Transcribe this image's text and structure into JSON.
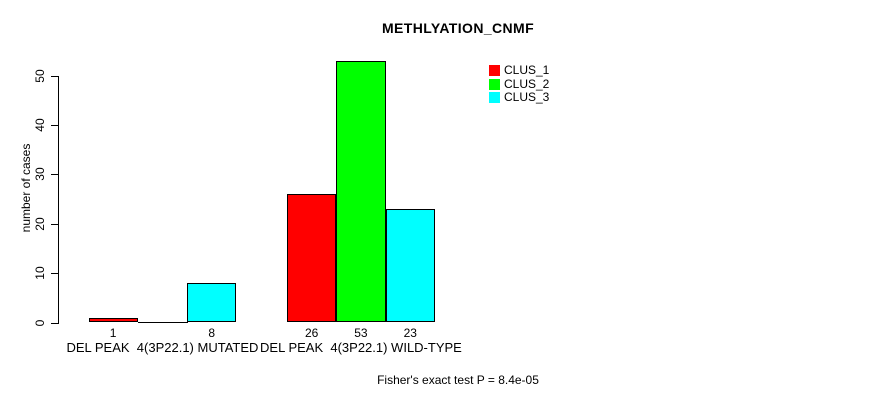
{
  "chart_data": {
    "type": "bar",
    "title": "METHLYATION_CNMF",
    "ylabel": "number of cases",
    "ylim": [
      0,
      53
    ],
    "yticks": [
      0,
      10,
      20,
      30,
      40,
      50
    ],
    "grid": false,
    "legend_position": "top-right-inside",
    "series": [
      {
        "name": "CLUS_1",
        "color": "#FF0000"
      },
      {
        "name": "CLUS_2",
        "color": "#00FF00"
      },
      {
        "name": "CLUS_3",
        "color": "#00FFFF"
      }
    ],
    "groups": [
      {
        "label": "DEL PEAK  4(3P22.1) MUTATED",
        "values": [
          1,
          0,
          8
        ],
        "value_labels": [
          "1",
          "",
          "8"
        ]
      },
      {
        "label": "DEL PEAK  4(3P22.1) WILD-TYPE",
        "values": [
          26,
          53,
          23
        ],
        "value_labels": [
          "26",
          "53",
          "23"
        ]
      }
    ],
    "footer": "Fisher's exact test P = 8.4e-05"
  }
}
